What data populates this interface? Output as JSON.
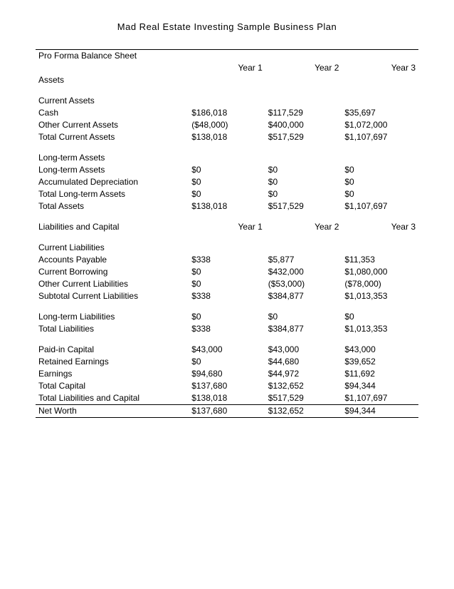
{
  "doc_title": "Mad Real Estate Investing Sample Business Plan",
  "table_title": "Pro Forma Balance Sheet",
  "col_headers": [
    "Year 1",
    "Year 2",
    "Year 3"
  ],
  "assets_label": "Assets",
  "current_assets": {
    "header": "Current Assets",
    "cash": {
      "label": "Cash",
      "y1": "$186,018",
      "y2": "$117,529",
      "y3": "$35,697"
    },
    "other": {
      "label": "Other Current Assets",
      "y1": "($48,000)",
      "y2": "$400,000",
      "y3": "$1,072,000"
    },
    "total": {
      "label": "Total Current Assets",
      "y1": "$138,018",
      "y2": "$517,529",
      "y3": "$1,107,697"
    }
  },
  "long_term_assets": {
    "header": "Long-term Assets",
    "lta": {
      "label": "Long-term Assets",
      "y1": "$0",
      "y2": "$0",
      "y3": "$0"
    },
    "depr": {
      "label": "Accumulated Depreciation",
      "y1": "$0",
      "y2": "$0",
      "y3": "$0"
    },
    "total": {
      "label": "Total Long-term Assets",
      "y1": "$0",
      "y2": "$0",
      "y3": "$0"
    }
  },
  "total_assets": {
    "label": "Total Assets",
    "y1": "$138,018",
    "y2": "$517,529",
    "y3": "$1,107,697"
  },
  "liab_cap_label": "Liabilities and Capital",
  "liab_cap_headers": [
    "Year 1",
    "Year 2",
    "Year 3"
  ],
  "current_liab": {
    "header": "Current Liabilities",
    "ap": {
      "label": "Accounts Payable",
      "y1": "$338",
      "y2": "$5,877",
      "y3": "$11,353"
    },
    "borrow": {
      "label": "Current Borrowing",
      "y1": "$0",
      "y2": "$432,000",
      "y3": "$1,080,000"
    },
    "other": {
      "label": "Other Current Liabilities",
      "y1": "$0",
      "y2": "($53,000)",
      "y3": "($78,000)"
    },
    "sub": {
      "label": "Subtotal Current Liabilities",
      "y1": "$338",
      "y2": "$384,877",
      "y3": "$1,013,353"
    }
  },
  "lt_liab": {
    "label": "Long-term Liabilities",
    "y1": "$0",
    "y2": "$0",
    "y3": "$0"
  },
  "total_liab": {
    "label": "Total Liabilities",
    "y1": "$338",
    "y2": "$384,877",
    "y3": "$1,013,353"
  },
  "capital": {
    "paidin": {
      "label": "Paid-in Capital",
      "y1": "$43,000",
      "y2": "$43,000",
      "y3": "$43,000"
    },
    "ret": {
      "label": "Retained Earnings",
      "y1": "$0",
      "y2": "$44,680",
      "y3": "$39,652"
    },
    "earn": {
      "label": "Earnings",
      "y1": "$94,680",
      "y2": "$44,972",
      "y3": "$11,692"
    },
    "totcap": {
      "label": "Total Capital",
      "y1": "$137,680",
      "y2": "$132,652",
      "y3": "$94,344"
    },
    "totlc": {
      "label": "Total Liabilities and Capital",
      "y1": "$138,018",
      "y2": "$517,529",
      "y3": "$1,107,697"
    }
  },
  "net_worth": {
    "label": "Net Worth",
    "y1": "$137,680",
    "y2": "$132,652",
    "y3": "$94,344"
  },
  "colors": {
    "text": "#000000",
    "background": "#ffffff",
    "border": "#000000"
  },
  "fontsize_title": 13,
  "fontsize_body": 12
}
